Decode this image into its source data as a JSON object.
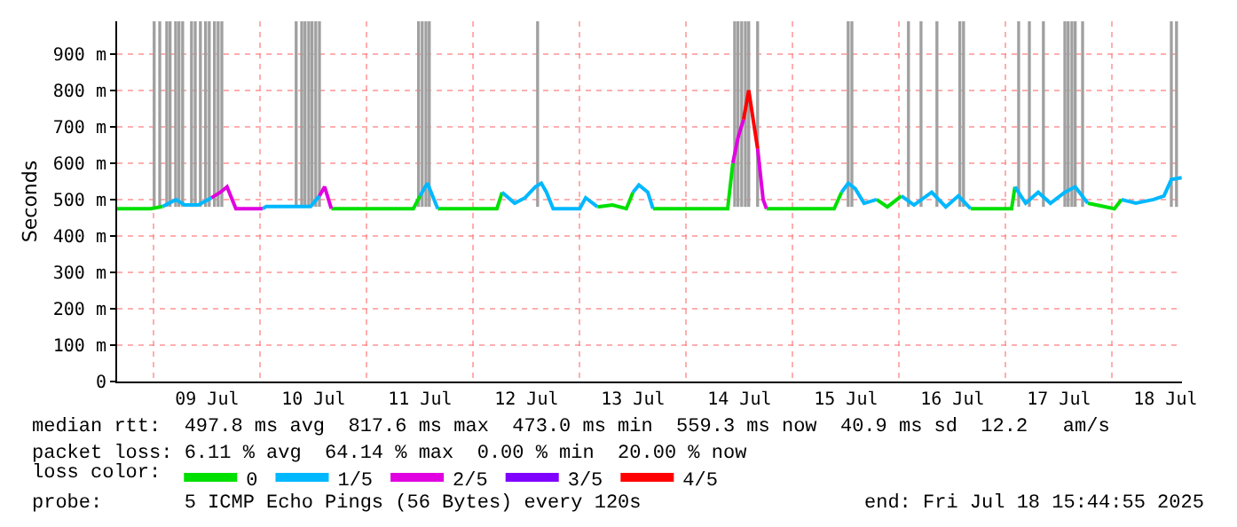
{
  "chart_data": {
    "type": "line",
    "ylabel": "Seconds",
    "legend_title": "loss color:",
    "legend": "bottom",
    "grid": true,
    "marker": "none",
    "line_style": "solid",
    "xlim": [
      "2025-07-08T15:44",
      "2025-07-18T15:44"
    ],
    "xticks": [
      {
        "value": "2025-07-09T12:00",
        "label": "09 Jul"
      },
      {
        "value": "2025-07-10T12:00",
        "label": "10 Jul"
      },
      {
        "value": "2025-07-11T12:00",
        "label": "11 Jul"
      },
      {
        "value": "2025-07-12T12:00",
        "label": "12 Jul"
      },
      {
        "value": "2025-07-13T12:00",
        "label": "13 Jul"
      },
      {
        "value": "2025-07-14T12:00",
        "label": "14 Jul"
      },
      {
        "value": "2025-07-15T12:00",
        "label": "15 Jul"
      },
      {
        "value": "2025-07-16T12:00",
        "label": "16 Jul"
      },
      {
        "value": "2025-07-17T12:00",
        "label": "17 Jul"
      },
      {
        "value": "2025-07-18T12:00",
        "label": "18 Jul"
      }
    ],
    "ylim": [
      0,
      990
    ],
    "yticks": [
      0,
      {
        "value": 100,
        "label": "100 m"
      },
      {
        "value": 200,
        "label": "200 m"
      },
      {
        "value": 300,
        "label": "300 m"
      },
      {
        "value": 400,
        "label": "400 m"
      },
      {
        "value": 500,
        "label": "500 m"
      },
      {
        "value": 600,
        "label": "600 m"
      },
      {
        "value": 700,
        "label": "700 m"
      },
      {
        "value": 800,
        "label": "800 m"
      },
      {
        "value": 900,
        "label": "900 m"
      }
    ],
    "x": [
      "2025-07-08T15:44",
      "2025-07-08T23:20",
      "2025-07-09T02:00",
      "2025-07-09T05:00",
      "2025-07-09T07:00",
      "2025-07-09T10:00",
      "2025-07-09T13:00",
      "2025-07-09T15:00",
      "2025-07-09T16:30",
      "2025-07-09T18:30",
      "2025-07-10T00:30",
      "2025-07-10T01:20",
      "2025-07-10T11:20",
      "2025-07-10T13:20",
      "2025-07-10T14:30",
      "2025-07-10T16:00",
      "2025-07-11T10:30",
      "2025-07-11T12:00",
      "2025-07-11T13:40",
      "2025-07-11T16:00",
      "2025-07-12T05:20",
      "2025-07-12T06:30",
      "2025-07-12T09:20",
      "2025-07-12T11:40",
      "2025-07-12T14:00",
      "2025-07-12T15:20",
      "2025-07-12T16:30",
      "2025-07-12T18:00",
      "2025-07-13T00:00",
      "2025-07-13T01:20",
      "2025-07-13T04:00",
      "2025-07-13T07:20",
      "2025-07-13T10:30",
      "2025-07-13T12:00",
      "2025-07-13T13:20",
      "2025-07-13T15:20",
      "2025-07-13T16:30",
      "2025-07-14T09:20",
      "2025-07-14T10:30",
      "2025-07-14T11:40",
      "2025-07-14T12:55",
      "2025-07-14T14:05",
      "2025-07-14T15:20",
      "2025-07-14T16:05",
      "2025-07-14T17:20",
      "2025-07-14T18:05",
      "2025-07-15T09:20",
      "2025-07-15T11:00",
      "2025-07-15T12:30",
      "2025-07-15T14:05",
      "2025-07-15T16:05",
      "2025-07-15T18:55",
      "2025-07-15T21:20",
      "2025-07-16T00:30",
      "2025-07-16T03:20",
      "2025-07-16T07:20",
      "2025-07-16T10:30",
      "2025-07-16T13:20",
      "2025-07-16T16:05",
      "2025-07-17T01:20",
      "2025-07-17T02:05",
      "2025-07-17T04:30",
      "2025-07-17T07:20",
      "2025-07-17T10:05",
      "2025-07-17T13:20",
      "2025-07-17T15:40",
      "2025-07-17T18:30",
      "2025-07-18T00:30",
      "2025-07-18T02:05",
      "2025-07-18T05:20",
      "2025-07-18T09:20",
      "2025-07-18T11:40",
      "2025-07-18T13:20",
      "2025-07-18T15:40"
    ],
    "series": [
      {
        "type": "bar",
        "color": "#a0a0a0",
        "x": [
          "2025-07-09T00:05",
          "2025-07-09T01:20",
          "2025-07-09T02:55",
          "2025-07-09T03:40",
          "2025-07-09T04:55",
          "2025-07-09T05:40",
          "2025-07-09T06:30",
          "2025-07-09T08:30",
          "2025-07-09T09:20",
          "2025-07-09T10:30",
          "2025-07-09T11:40",
          "2025-07-09T12:30",
          "2025-07-09T13:40",
          "2025-07-09T14:30",
          "2025-07-09T15:20",
          "2025-07-10T08:05",
          "2025-07-10T09:20",
          "2025-07-10T10:05",
          "2025-07-10T10:55",
          "2025-07-10T11:40",
          "2025-07-10T12:30",
          "2025-07-10T13:20",
          "2025-07-11T11:40",
          "2025-07-11T12:30",
          "2025-07-11T13:20",
          "2025-07-11T14:05",
          "2025-07-12T14:30",
          "2025-07-14T10:55",
          "2025-07-14T11:40",
          "2025-07-14T12:30",
          "2025-07-14T13:20",
          "2025-07-14T14:05",
          "2025-07-14T16:05",
          "2025-07-15T12:30",
          "2025-07-15T13:20",
          "2025-07-16T02:05",
          "2025-07-16T04:55",
          "2025-07-16T08:30",
          "2025-07-16T13:40",
          "2025-07-16T14:30",
          "2025-07-17T02:55",
          "2025-07-17T05:20",
          "2025-07-17T08:30",
          "2025-07-17T13:20",
          "2025-07-17T14:05",
          "2025-07-17T14:55",
          "2025-07-17T15:40",
          "2025-07-17T17:20",
          "2025-07-18T13:20",
          "2025-07-18T14:30"
        ],
        "base": [
          480,
          480,
          480,
          480,
          480,
          480,
          480,
          480,
          480,
          480,
          480,
          480,
          480,
          480,
          480,
          480,
          480,
          480,
          480,
          480,
          480,
          480,
          480,
          480,
          480,
          480,
          480,
          480,
          480,
          480,
          480,
          480,
          480,
          480,
          480,
          480,
          480,
          480,
          480,
          480,
          480,
          480,
          480,
          480,
          480,
          480,
          480,
          480,
          480,
          480
        ],
        "values": [
          510,
          510,
          510,
          510,
          510,
          510,
          510,
          510,
          510,
          510,
          510,
          510,
          510,
          510,
          510,
          510,
          510,
          510,
          510,
          510,
          510,
          510,
          510,
          510,
          510,
          510,
          510,
          510,
          510,
          510,
          510,
          510,
          510,
          510,
          510,
          510,
          510,
          510,
          510,
          510,
          510,
          510,
          510,
          510,
          510,
          510,
          510,
          510,
          510,
          510
        ]
      },
      {
        "name": "0",
        "color": "#00e000",
        "values": [
          475,
          475,
          481,
          null,
          null,
          null,
          null,
          null,
          null,
          null,
          null,
          null,
          null,
          null,
          null,
          475,
          475,
          510,
          null,
          475,
          475,
          520,
          null,
          null,
          null,
          null,
          null,
          null,
          null,
          null,
          480,
          485,
          475,
          520,
          null,
          null,
          475,
          475,
          600,
          null,
          null,
          null,
          null,
          null,
          null,
          475,
          475,
          520,
          null,
          null,
          null,
          500,
          480,
          510,
          null,
          null,
          null,
          null,
          475,
          475,
          535,
          null,
          null,
          null,
          null,
          null,
          490,
          475,
          500,
          null,
          null,
          null,
          null,
          null
        ]
      },
      {
        "name": "1/5",
        "color": "#00b8ff",
        "values": [
          null,
          null,
          481,
          500,
          485,
          485,
          505,
          null,
          null,
          null,
          475,
          481,
          481,
          510,
          null,
          null,
          null,
          510,
          545,
          475,
          null,
          520,
          490,
          505,
          535,
          545,
          520,
          475,
          475,
          505,
          480,
          null,
          null,
          520,
          540,
          520,
          475,
          null,
          null,
          null,
          null,
          null,
          null,
          null,
          null,
          null,
          null,
          520,
          545,
          530,
          490,
          500,
          null,
          510,
          485,
          520,
          480,
          510,
          475,
          null,
          535,
          490,
          520,
          490,
          520,
          535,
          490,
          null,
          500,
          490,
          500,
          510,
          555,
          560
        ]
      },
      {
        "name": "2/5",
        "color": "#e000e0",
        "values": [
          null,
          null,
          null,
          null,
          null,
          null,
          505,
          520,
          535,
          475,
          475,
          null,
          null,
          510,
          535,
          475,
          null,
          null,
          null,
          null,
          null,
          null,
          null,
          null,
          null,
          null,
          null,
          null,
          null,
          null,
          null,
          null,
          null,
          null,
          null,
          null,
          null,
          null,
          600,
          670,
          720,
          null,
          null,
          640,
          500,
          475,
          null,
          null,
          null,
          null,
          null,
          null,
          null,
          null,
          null,
          null,
          null,
          null,
          null,
          null,
          null,
          null,
          null,
          null,
          null,
          null,
          null,
          null,
          null,
          null,
          null,
          null,
          null,
          null
        ]
      },
      {
        "name": "3/5",
        "color": "#8000ff",
        "values": [
          null,
          null,
          null,
          null,
          null,
          null,
          null,
          null,
          null,
          null,
          null,
          null,
          null,
          null,
          null,
          null,
          null,
          null,
          null,
          null,
          null,
          null,
          null,
          null,
          null,
          null,
          null,
          null,
          null,
          null,
          null,
          null,
          null,
          null,
          null,
          null,
          null,
          null,
          null,
          null,
          null,
          null,
          null,
          null,
          null,
          null,
          null,
          null,
          null,
          null,
          null,
          null,
          null,
          null,
          null,
          null,
          null,
          null,
          null,
          null,
          null,
          null,
          null,
          null,
          null,
          null,
          null,
          null,
          null,
          null,
          null,
          null,
          null,
          null
        ]
      },
      {
        "name": "4/5",
        "color": "#ff0000",
        "values": [
          null,
          null,
          null,
          null,
          null,
          null,
          null,
          null,
          null,
          null,
          null,
          null,
          null,
          null,
          null,
          null,
          null,
          null,
          null,
          null,
          null,
          null,
          null,
          null,
          null,
          null,
          null,
          null,
          null,
          null,
          null,
          null,
          null,
          null,
          null,
          null,
          null,
          null,
          null,
          null,
          720,
          800,
          700,
          640,
          null,
          null,
          null,
          null,
          null,
          null,
          null,
          null,
          null,
          null,
          null,
          null,
          null,
          null,
          null,
          null,
          null,
          null,
          null,
          null,
          null,
          null,
          null,
          null,
          null,
          null,
          null,
          null,
          null,
          null
        ]
      }
    ],
    "annotations": [
      "median rtt:  497.8 ms avg  817.6 ms max  473.0 ms min  559.3 ms now  40.9 ms sd  12.2   am/s",
      "packet loss: 6.11 % avg  64.14 % max  0.00 % min  20.00 % now",
      "probe:       5 ICMP Echo Pings (56 Bytes) every 120s",
      "end: Fri Jul 18 15:44:55 2025"
    ]
  }
}
